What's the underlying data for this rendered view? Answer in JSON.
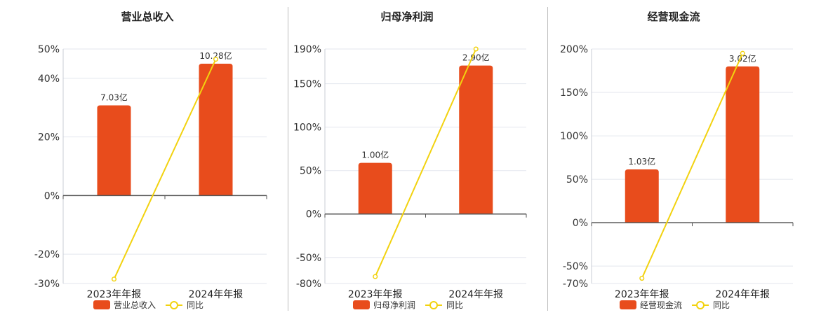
{
  "colors": {
    "bar": "#e84c1c",
    "line": "#f2d20f",
    "grid": "#e3e6ee",
    "axis": "#555555",
    "divider": "#bdbdbd"
  },
  "chart_data": [
    {
      "type": "bar",
      "title": "营业总收入",
      "categories": [
        "2023年年报",
        "2024年年报"
      ],
      "series": [
        {
          "name": "营业总收入",
          "kind": "bar",
          "values": [
            7.03,
            10.28
          ],
          "labels": [
            "7.03亿",
            "10.28亿"
          ]
        },
        {
          "name": "同比",
          "kind": "line",
          "values": [
            -28.5,
            46.5
          ]
        }
      ],
      "yticks": [
        50,
        40,
        20,
        0,
        -20,
        -30
      ],
      "ytick_labels": [
        "50%",
        "40%",
        "20%",
        "0%",
        "-20%",
        "-30%"
      ],
      "ylim": [
        -30,
        50
      ],
      "legend": "bottom",
      "grid": true
    },
    {
      "type": "bar",
      "title": "归母净利润",
      "categories": [
        "2023年年报",
        "2024年年报"
      ],
      "series": [
        {
          "name": "归母净利润",
          "kind": "bar",
          "values": [
            1.0,
            2.9
          ],
          "labels": [
            "1.00亿",
            "2.90亿"
          ]
        },
        {
          "name": "同比",
          "kind": "line",
          "values": [
            -72,
            190
          ]
        }
      ],
      "yticks": [
        190,
        150,
        100,
        50,
        0,
        -50,
        -80
      ],
      "ytick_labels": [
        "190%",
        "150%",
        "100%",
        "50%",
        "0%",
        "-50%",
        "-80%"
      ],
      "ylim": [
        -80,
        190
      ],
      "legend": "bottom",
      "grid": true
    },
    {
      "type": "bar",
      "title": "经营现金流",
      "categories": [
        "2023年年报",
        "2024年年报"
      ],
      "series": [
        {
          "name": "经营现金流",
          "kind": "bar",
          "values": [
            1.03,
            3.02
          ],
          "labels": [
            "1.03亿",
            "3.02亿"
          ]
        },
        {
          "name": "同比",
          "kind": "line",
          "values": [
            -64,
            195
          ]
        }
      ],
      "yticks": [
        200,
        150,
        100,
        50,
        0,
        -50,
        -70
      ],
      "ytick_labels": [
        "200%",
        "150%",
        "100%",
        "50%",
        "0%",
        "-50%",
        "-70%"
      ],
      "ylim": [
        -70,
        200
      ],
      "legend": "bottom",
      "grid": true
    }
  ]
}
